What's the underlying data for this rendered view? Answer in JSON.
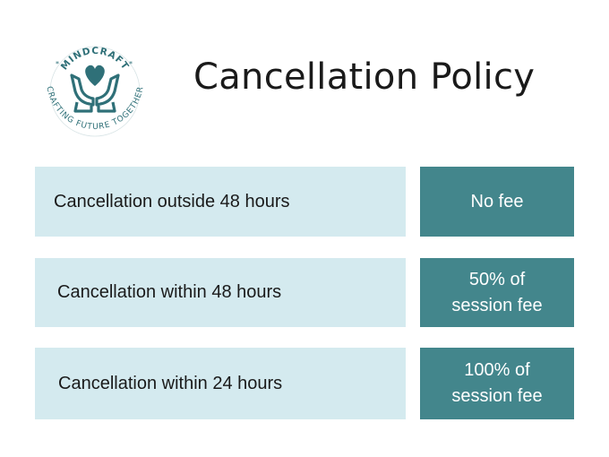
{
  "logo": {
    "brand": "MINDCRAFT",
    "tagline": "CRAFTING FUTURE TOGETHER",
    "color": "#2f7078",
    "heart_color": "#2f7078"
  },
  "title": "Cancellation Policy",
  "colors": {
    "condition_bg": "#d4eaef",
    "fee_bg": "#43868c",
    "fee_text": "#ffffff",
    "text": "#1a1a1a"
  },
  "policies": [
    {
      "condition": "Cancellation outside 48 hours",
      "fee_line1": "No fee",
      "fee_line2": ""
    },
    {
      "condition": "Cancellation within 48 hours",
      "fee_line1": "50% of",
      "fee_line2": "session fee"
    },
    {
      "condition": "Cancellation within 24 hours",
      "fee_line1": "100% of",
      "fee_line2": "session fee"
    }
  ]
}
